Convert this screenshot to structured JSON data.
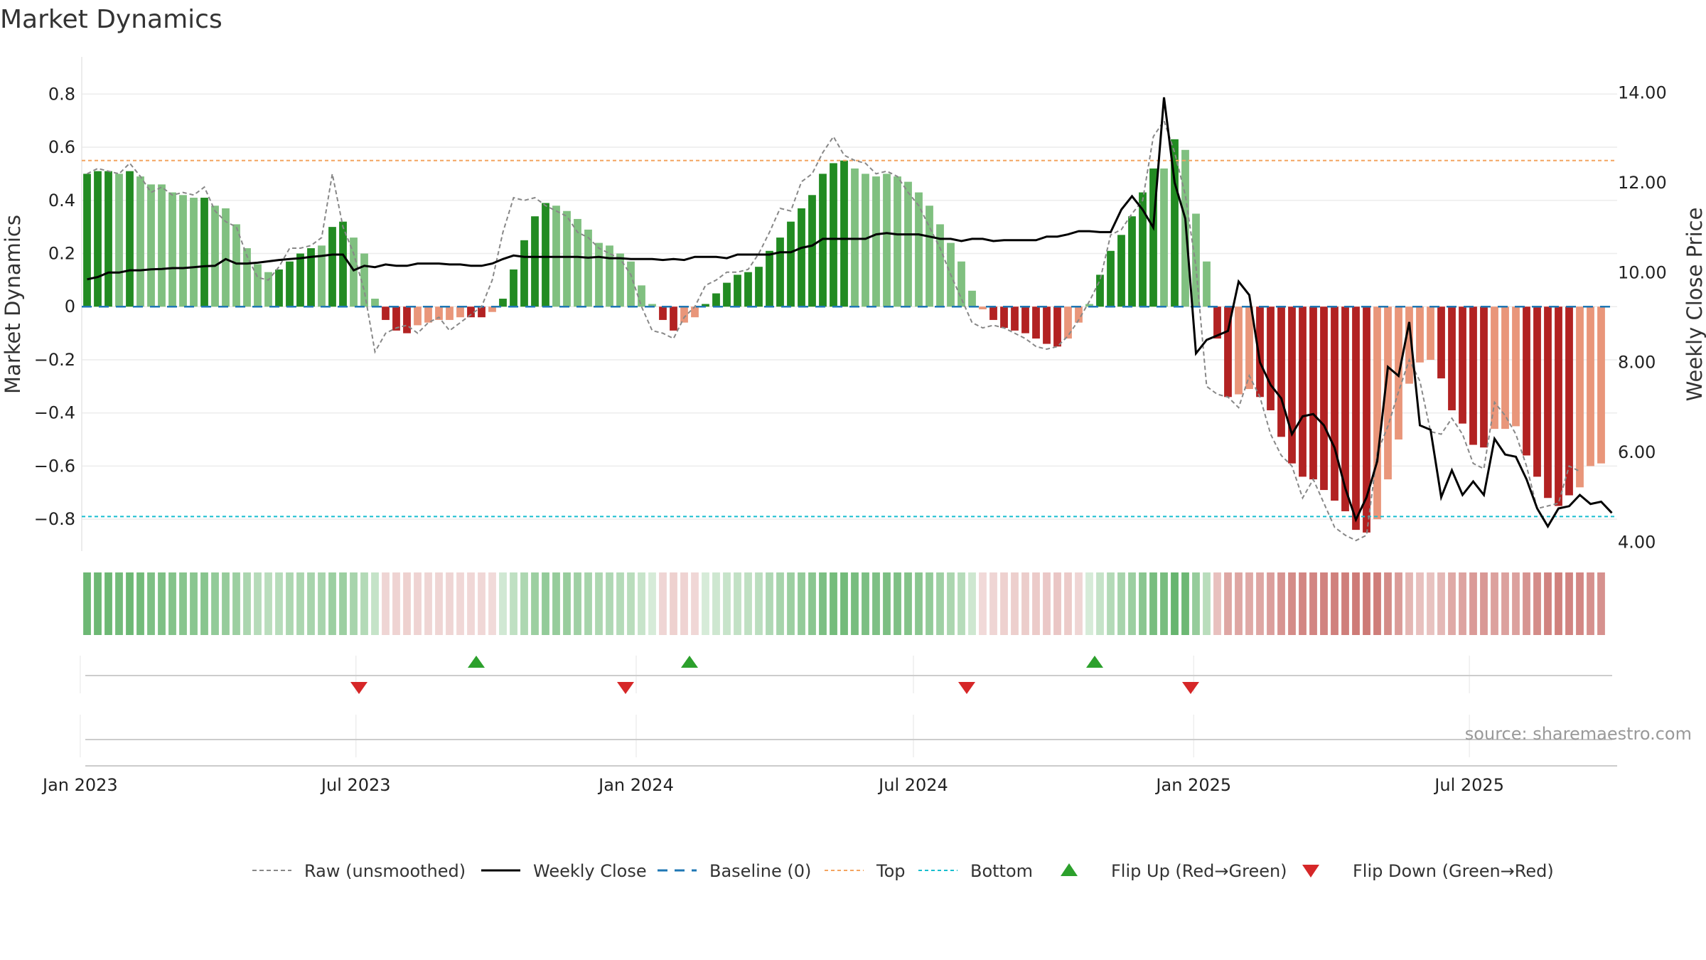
{
  "chart_data": {
    "type": "bar",
    "title": "Market Dynamics",
    "ylabel": "Market Dynamics",
    "y2label": "Weekly Close Price",
    "ylim": [
      -0.92,
      0.94
    ],
    "y2lim": [
      3.8,
      14.8
    ],
    "yticks": [
      0.8,
      0.6,
      0.4,
      0.2,
      0,
      -0.2,
      -0.4,
      -0.6,
      -0.8
    ],
    "ytick_labels": [
      "0.8",
      "0.6",
      "0.4",
      "0.2",
      "0",
      "−0.2",
      "−0.4",
      "−0.6",
      "−0.8"
    ],
    "y2ticks": [
      14,
      12,
      10,
      8,
      6,
      4
    ],
    "y2tick_labels": [
      "14.00",
      "12.00",
      "10.00",
      "8.00",
      "6.00",
      "4.00"
    ],
    "x_start": "2023-01-02",
    "x_end": "2025-10-06",
    "xticks": [
      "2023-01-01",
      "2023-07-01",
      "2024-01-01",
      "2024-07-01",
      "2025-01-01",
      "2025-07-01"
    ],
    "xtick_labels": [
      "Jan 2023",
      "Jul 2023",
      "Jan 2024",
      "Jul 2024",
      "Jan 2025",
      "Jul 2025"
    ],
    "grid": true,
    "legend_position": "bottom-center",
    "source": "source: sharemaestro.com",
    "colors": {
      "strong_green": "#228b22",
      "light_green": "#80c080",
      "strong_red": "#b22222",
      "light_red": "#e9967a",
      "close_line": "#000000",
      "raw_line": "#888888",
      "baseline": "#1f77b4",
      "top": "#f4a460",
      "bottom": "#17becf",
      "flip_up": "#2ca02c",
      "flip_down": "#d62728"
    },
    "levels": {
      "baseline": 0,
      "top": 0.55,
      "bottom": -0.79
    },
    "bar_values": [
      0.5,
      0.51,
      0.51,
      0.5,
      0.51,
      0.49,
      0.46,
      0.46,
      0.43,
      0.42,
      0.41,
      0.41,
      0.38,
      0.37,
      0.31,
      0.22,
      0.16,
      0.13,
      0.14,
      0.17,
      0.2,
      0.22,
      0.23,
      0.3,
      0.32,
      0.26,
      0.2,
      0.03,
      -0.05,
      -0.09,
      -0.1,
      -0.07,
      -0.06,
      -0.05,
      -0.05,
      -0.04,
      -0.04,
      -0.04,
      -0.02,
      0.03,
      0.14,
      0.25,
      0.34,
      0.39,
      0.38,
      0.36,
      0.33,
      0.29,
      0.24,
      0.23,
      0.2,
      0.17,
      0.08,
      0.01,
      -0.05,
      -0.09,
      -0.06,
      -0.04,
      0.01,
      0.05,
      0.09,
      0.12,
      0.13,
      0.15,
      0.21,
      0.26,
      0.32,
      0.37,
      0.42,
      0.5,
      0.54,
      0.55,
      0.52,
      0.5,
      0.49,
      0.5,
      0.49,
      0.47,
      0.43,
      0.38,
      0.31,
      0.24,
      0.17,
      0.06,
      -0.01,
      -0.05,
      -0.08,
      -0.09,
      -0.1,
      -0.12,
      -0.14,
      -0.15,
      -0.12,
      -0.06,
      0.01,
      0.12,
      0.21,
      0.27,
      0.34,
      0.43,
      0.52,
      0.52,
      0.63,
      0.59,
      0.35,
      0.17,
      -0.12,
      -0.34,
      -0.33,
      -0.31,
      -0.34,
      -0.39,
      -0.49,
      -0.59,
      -0.64,
      -0.65,
      -0.69,
      -0.73,
      -0.77,
      -0.84,
      -0.85,
      -0.8,
      -0.65,
      -0.5,
      -0.29,
      -0.21,
      -0.2,
      -0.27,
      -0.39,
      -0.44,
      -0.52,
      -0.53,
      -0.46,
      -0.46,
      -0.45,
      -0.56,
      -0.64,
      -0.72,
      -0.75,
      -0.71,
      -0.68,
      -0.6,
      -0.59
    ],
    "bar_color_class": [
      "sg",
      "sg",
      "sg",
      "lg",
      "sg",
      "lg",
      "lg",
      "lg",
      "lg",
      "lg",
      "lg",
      "sg",
      "lg",
      "lg",
      "lg",
      "lg",
      "lg",
      "lg",
      "sg",
      "sg",
      "sg",
      "sg",
      "lg",
      "sg",
      "sg",
      "lg",
      "lg",
      "lg",
      "sr",
      "sr",
      "sr",
      "lr",
      "lr",
      "lr",
      "lr",
      "lr",
      "sr",
      "sr",
      "lr",
      "sg",
      "sg",
      "sg",
      "sg",
      "sg",
      "lg",
      "lg",
      "lg",
      "lg",
      "lg",
      "lg",
      "lg",
      "lg",
      "lg",
      "lg",
      "sr",
      "sr",
      "lr",
      "lr",
      "sg",
      "sg",
      "sg",
      "sg",
      "sg",
      "sg",
      "sg",
      "sg",
      "sg",
      "sg",
      "sg",
      "sg",
      "sg",
      "sg",
      "lg",
      "lg",
      "lg",
      "lg",
      "lg",
      "lg",
      "lg",
      "lg",
      "lg",
      "lg",
      "lg",
      "lg",
      "lr",
      "sr",
      "sr",
      "sr",
      "sr",
      "sr",
      "sr",
      "sr",
      "lr",
      "lr",
      "lg",
      "sg",
      "sg",
      "sg",
      "sg",
      "sg",
      "sg",
      "lg",
      "sg",
      "lg",
      "lg",
      "lg",
      "sr",
      "sr",
      "lr",
      "lr",
      "sr",
      "sr",
      "sr",
      "sr",
      "sr",
      "sr",
      "sr",
      "sr",
      "sr",
      "sr",
      "sr",
      "lr",
      "lr",
      "lr",
      "lr",
      "lr",
      "lr",
      "sr",
      "sr",
      "sr",
      "sr",
      "sr",
      "lr",
      "lr",
      "lr",
      "sr",
      "sr",
      "sr",
      "sr",
      "sr",
      "lr",
      "lr",
      "lr"
    ],
    "raw_values": [
      0.5,
      0.52,
      0.51,
      0.5,
      0.54,
      0.49,
      0.43,
      0.45,
      0.42,
      0.43,
      0.42,
      0.45,
      0.36,
      0.32,
      0.3,
      0.19,
      0.11,
      0.1,
      0.15,
      0.22,
      0.22,
      0.23,
      0.26,
      0.5,
      0.3,
      0.2,
      0.06,
      -0.17,
      -0.1,
      -0.08,
      -0.07,
      -0.1,
      -0.06,
      -0.04,
      -0.09,
      -0.06,
      -0.03,
      0,
      0.1,
      0.28,
      0.41,
      0.4,
      0.41,
      0.38,
      0.36,
      0.34,
      0.28,
      0.26,
      0.22,
      0.2,
      0.18,
      0.12,
      0.0,
      -0.09,
      -0.1,
      -0.12,
      -0.04,
      0,
      0.08,
      0.1,
      0.13,
      0.13,
      0.14,
      0.2,
      0.28,
      0.37,
      0.36,
      0.47,
      0.5,
      0.58,
      0.64,
      0.57,
      0.55,
      0.54,
      0.5,
      0.51,
      0.49,
      0.43,
      0.38,
      0.3,
      0.22,
      0.12,
      0.03,
      -0.06,
      -0.08,
      -0.07,
      -0.08,
      -0.1,
      -0.12,
      -0.15,
      -0.16,
      -0.15,
      -0.11,
      -0.05,
      0.02,
      0.1,
      0.27,
      0.29,
      0.35,
      0.4,
      0.64,
      0.7,
      0.58,
      0.42,
      0.15,
      -0.3,
      -0.33,
      -0.34,
      -0.38,
      -0.26,
      -0.34,
      -0.48,
      -0.56,
      -0.6,
      -0.72,
      -0.65,
      -0.74,
      -0.83,
      -0.86,
      -0.88,
      -0.86,
      -0.55,
      -0.45,
      -0.32,
      -0.2,
      -0.28,
      -0.47,
      -0.48,
      -0.42,
      -0.48,
      -0.59,
      -0.61,
      -0.36,
      -0.41,
      -0.48,
      -0.6,
      -0.76,
      -0.75,
      -0.74,
      -0.6,
      -0.62
    ],
    "weekly_close": [
      9.85,
      9.9,
      10.0,
      10.0,
      10.05,
      10.05,
      10.07,
      10.08,
      10.1,
      10.1,
      10.12,
      10.14,
      10.15,
      10.3,
      10.2,
      10.2,
      10.22,
      10.25,
      10.28,
      10.3,
      10.32,
      10.35,
      10.37,
      10.4,
      10.4,
      10.05,
      10.15,
      10.12,
      10.18,
      10.15,
      10.15,
      10.2,
      10.2,
      10.2,
      10.18,
      10.18,
      10.15,
      10.15,
      10.2,
      10.3,
      10.38,
      10.35,
      10.35,
      10.35,
      10.35,
      10.35,
      10.35,
      10.33,
      10.35,
      10.32,
      10.32,
      10.3,
      10.3,
      10.3,
      10.28,
      10.3,
      10.28,
      10.35,
      10.35,
      10.35,
      10.32,
      10.4,
      10.4,
      10.4,
      10.4,
      10.45,
      10.45,
      10.55,
      10.6,
      10.75,
      10.75,
      10.75,
      10.75,
      10.75,
      10.85,
      10.88,
      10.85,
      10.85,
      10.85,
      10.8,
      10.75,
      10.75,
      10.7,
      10.75,
      10.75,
      10.7,
      10.72,
      10.72,
      10.72,
      10.72,
      10.8,
      10.8,
      10.85,
      10.92,
      10.92,
      10.9,
      10.9,
      11.4,
      11.7,
      11.4,
      11.0,
      13.9,
      12.0,
      11.2,
      8.2,
      8.5,
      8.6,
      8.7,
      9.8,
      9.5,
      8.0,
      7.5,
      7.2,
      6.4,
      6.8,
      6.85,
      6.6,
      6.1,
      5.2,
      4.5,
      5.0,
      5.8,
      7.9,
      7.7,
      8.9,
      6.6,
      6.5,
      5.0,
      5.6,
      5.05,
      5.35,
      5.05,
      6.3,
      5.95,
      5.9,
      5.4,
      4.75,
      4.35,
      4.75,
      4.8,
      5.05,
      4.85,
      4.9,
      4.65
    ],
    "regime_shades": [
      0.95,
      0.95,
      0.95,
      0.9,
      0.95,
      0.9,
      0.8,
      0.8,
      0.75,
      0.72,
      0.7,
      0.72,
      0.62,
      0.6,
      0.55,
      0.42,
      0.33,
      0.3,
      0.32,
      0.4,
      0.42,
      0.45,
      0.45,
      0.55,
      0.55,
      0.45,
      0.35,
      0.2,
      0.1,
      0.12,
      0.14,
      0.12,
      0.1,
      0.1,
      0.1,
      0.08,
      0.08,
      0.08,
      0.05,
      0.1,
      0.25,
      0.4,
      0.55,
      0.62,
      0.6,
      0.58,
      0.52,
      0.46,
      0.4,
      0.38,
      0.34,
      0.3,
      0.18,
      0.05,
      0.1,
      0.14,
      0.12,
      0.08,
      0.05,
      0.12,
      0.18,
      0.22,
      0.25,
      0.28,
      0.38,
      0.46,
      0.55,
      0.62,
      0.7,
      0.82,
      0.88,
      0.9,
      0.85,
      0.82,
      0.8,
      0.82,
      0.8,
      0.76,
      0.7,
      0.62,
      0.52,
      0.42,
      0.32,
      0.12,
      0.06,
      0.1,
      0.14,
      0.16,
      0.18,
      0.2,
      0.22,
      0.24,
      0.2,
      0.1,
      0.05,
      0.2,
      0.35,
      0.45,
      0.55,
      0.7,
      0.85,
      0.85,
      1.0,
      0.95,
      0.6,
      0.3,
      0.3,
      0.55,
      0.55,
      0.52,
      0.55,
      0.62,
      0.72,
      0.8,
      0.85,
      0.86,
      0.88,
      0.9,
      0.92,
      0.96,
      0.97,
      0.93,
      0.8,
      0.65,
      0.4,
      0.3,
      0.28,
      0.38,
      0.52,
      0.58,
      0.66,
      0.68,
      0.6,
      0.6,
      0.6,
      0.72,
      0.8,
      0.88,
      0.9,
      0.87,
      0.84,
      0.76,
      0.75
    ],
    "flip_up_dates": [
      "2023-09-18",
      "2024-02-05",
      "2024-10-28"
    ],
    "flip_down_dates": [
      "2023-07-03",
      "2023-12-25",
      "2024-08-05",
      "2024-12-30"
    ],
    "legend": [
      {
        "key": "raw",
        "label": "Raw (unsmoothed)"
      },
      {
        "key": "close",
        "label": "Weekly Close"
      },
      {
        "key": "baseline",
        "label": "Baseline (0)"
      },
      {
        "key": "top",
        "label": "Top"
      },
      {
        "key": "bottom",
        "label": "Bottom"
      },
      {
        "key": "flip_up",
        "label": "Flip Up (Red→Green)"
      },
      {
        "key": "flip_down",
        "label": "Flip Down (Green→Red)"
      }
    ]
  }
}
